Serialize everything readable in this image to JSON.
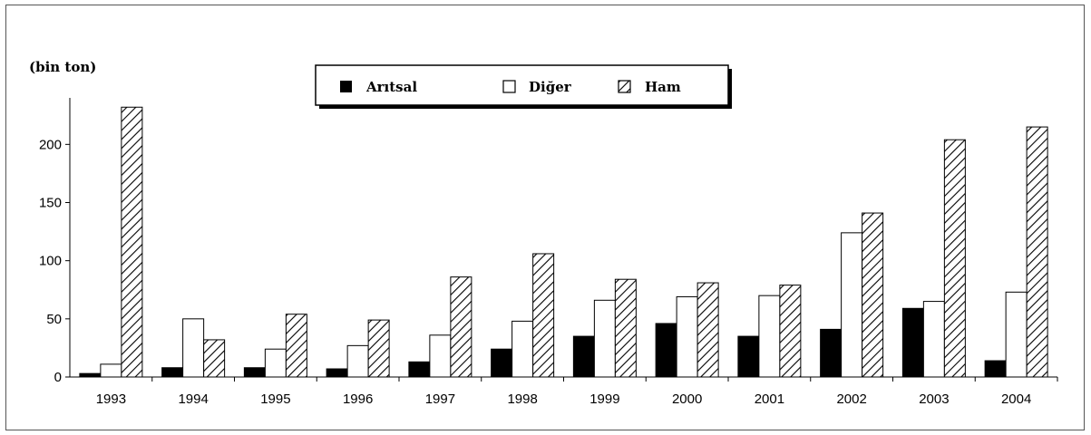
{
  "chart_data": {
    "type": "bar",
    "unit_label": "(bin ton)",
    "categories": [
      "1993",
      "1994",
      "1995",
      "1996",
      "1997",
      "1998",
      "1999",
      "2000",
      "2001",
      "2002",
      "2003",
      "2004"
    ],
    "series": [
      {
        "name": "Arıtsal",
        "color": "#000000",
        "pattern": "solid",
        "values": [
          3,
          8,
          8,
          7,
          13,
          24,
          35,
          46,
          35,
          41,
          59,
          14
        ]
      },
      {
        "name": "Diğer",
        "color": "#ffffff",
        "pattern": "outline",
        "values": [
          11,
          50,
          24,
          27,
          36,
          48,
          66,
          69,
          70,
          124,
          65,
          73
        ]
      },
      {
        "name": "Ham",
        "color": "#ffffff",
        "pattern": "hatched",
        "values": [
          232,
          32,
          54,
          49,
          86,
          106,
          84,
          81,
          79,
          141,
          204,
          215
        ]
      }
    ],
    "y_ticks": [
      0,
      50,
      100,
      150,
      200
    ],
    "ylim": [
      0,
      240
    ],
    "grid": false,
    "legend_position": "top-center"
  }
}
